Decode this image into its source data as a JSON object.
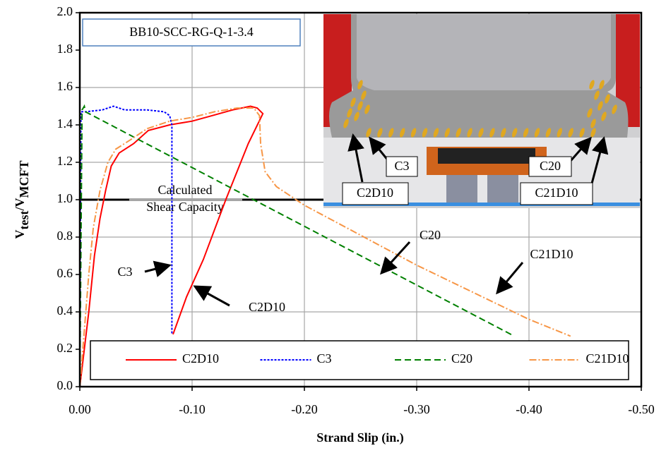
{
  "chart_data": {
    "type": "line",
    "xlabel": "Strand Slip (in.)",
    "ylabel_parts": [
      "V",
      "test",
      "/V",
      "MCFT"
    ],
    "box_label": "BB10-SCC-RG-Q-1-3.4",
    "reference": {
      "value": 1.0,
      "label_lines": [
        "Calculated",
        "Shear Capacity"
      ]
    },
    "xlim": [
      0,
      -0.5
    ],
    "xticks": [
      {
        "value": 0,
        "label": "0.00"
      },
      {
        "value": -0.1,
        "label": "-0.10"
      },
      {
        "value": -0.2,
        "label": "-0.20"
      },
      {
        "value": -0.3,
        "label": "-0.30"
      },
      {
        "value": -0.4,
        "label": "-0.40"
      },
      {
        "value": -0.5,
        "label": "-0.50"
      }
    ],
    "ylim": [
      0,
      2.0
    ],
    "yticks": [
      {
        "value": 0,
        "label": "0.0"
      },
      {
        "value": 0.2,
        "label": "0.2"
      },
      {
        "value": 0.4,
        "label": "0.4"
      },
      {
        "value": 0.6,
        "label": "0.6"
      },
      {
        "value": 0.8,
        "label": "0.8"
      },
      {
        "value": 1,
        "label": "1.0"
      },
      {
        "value": 1.2,
        "label": "1.2"
      },
      {
        "value": 1.4,
        "label": "1.4"
      },
      {
        "value": 1.6,
        "label": "1.6"
      },
      {
        "value": 1.8,
        "label": "1.8"
      },
      {
        "value": 2,
        "label": "2.0"
      }
    ],
    "grid": true,
    "legend": "bottom",
    "series": [
      {
        "name": "C2D10",
        "color": "#ff0000",
        "dash": "none",
        "x": [
          0,
          -0.003,
          -0.008,
          -0.013,
          -0.018,
          -0.023,
          -0.028,
          -0.035,
          -0.048,
          -0.061,
          -0.08,
          -0.1,
          -0.118,
          -0.136,
          -0.152,
          -0.158,
          -0.163,
          -0.15,
          -0.13,
          -0.11,
          -0.095,
          -0.083
        ],
        "values": [
          0,
          0.15,
          0.4,
          0.7,
          0.9,
          1.05,
          1.18,
          1.25,
          1.3,
          1.37,
          1.4,
          1.42,
          1.45,
          1.48,
          1.5,
          1.49,
          1.46,
          1.3,
          1.0,
          0.68,
          0.48,
          0.28
        ]
      },
      {
        "name": "C3",
        "color": "#0000ff",
        "dash": "3,2",
        "x": [
          0,
          -0.001,
          -0.005,
          -0.02,
          -0.03,
          -0.04,
          -0.06,
          -0.075,
          -0.08,
          -0.082,
          -0.082
        ],
        "values": [
          0,
          1.47,
          1.47,
          1.48,
          1.5,
          1.48,
          1.48,
          1.47,
          1.45,
          1.4,
          0.28
        ]
      },
      {
        "name": "C20",
        "color": "#008000",
        "dash": "9,5",
        "x": [
          0,
          -0.002,
          -0.004,
          -0.005,
          -0.387
        ],
        "values": [
          0,
          1.48,
          1.5,
          1.47,
          0.27
        ]
      },
      {
        "name": "C21D10",
        "color": "#f79646",
        "dash": "10,3,2,3",
        "x": [
          0,
          -0.004,
          -0.008,
          -0.012,
          -0.018,
          -0.025,
          -0.032,
          -0.045,
          -0.06,
          -0.08,
          -0.1,
          -0.12,
          -0.14,
          -0.155,
          -0.16,
          -0.161,
          -0.165,
          -0.175,
          -0.2,
          -0.3,
          -0.4,
          -0.437
        ],
        "values": [
          0,
          0.3,
          0.6,
          0.85,
          1.05,
          1.2,
          1.27,
          1.32,
          1.38,
          1.42,
          1.44,
          1.47,
          1.49,
          1.49,
          1.45,
          1.3,
          1.15,
          1.07,
          0.97,
          0.65,
          0.36,
          0.27
        ]
      }
    ],
    "annotations": [
      "C3",
      "C2D10",
      "C20",
      "C21D10"
    ],
    "inset_labels": [
      "C3",
      "C20",
      "C2D10",
      "C21D10"
    ]
  }
}
